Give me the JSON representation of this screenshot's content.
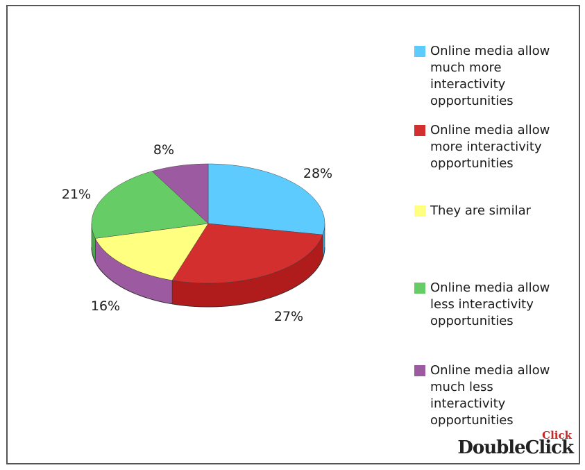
{
  "chart_data": {
    "type": "pie",
    "title": "",
    "categories": [
      "Online media allow much more interactivity opportunities",
      "Online media allow more interactivity opportunities",
      "They are similar",
      "Online media allow less interactivity opportunities",
      "Online media allow much less interactivity opportunities"
    ],
    "values": [
      28,
      27,
      16,
      21,
      8
    ],
    "labels": [
      "28%",
      "27%",
      "16%",
      "21%",
      "8%"
    ],
    "colors": [
      "#5ecbff",
      "#d32f2f",
      "#ffff80",
      "#66cc66",
      "#9c5aa0"
    ],
    "side_colors": [
      "#3fa8d8",
      "#b01b1b",
      "#9c5aa0",
      "#4ea84e",
      "#7a3f80"
    ],
    "style": "3d-pie",
    "legend_position": "right"
  },
  "legend": {
    "items": [
      {
        "lines": [
          "Online media allow",
          "much more",
          "interactivity",
          "opportunities"
        ],
        "color": "#5ecbff"
      },
      {
        "lines": [
          "Online media allow",
          "more interactivity",
          "opportunities"
        ],
        "color": "#d32f2f"
      },
      {
        "lines": [
          "They are similar"
        ],
        "color": "#ffff80"
      },
      {
        "lines": [
          "Online media allow",
          "less interactivity",
          "opportunities"
        ],
        "color": "#66cc66"
      },
      {
        "lines": [
          "Online media allow",
          "much less",
          "interactivity",
          "opportunities"
        ],
        "color": "#9c5aa0"
      }
    ]
  },
  "logo": {
    "main_text": "DoubleClick",
    "top_text": "Click"
  }
}
